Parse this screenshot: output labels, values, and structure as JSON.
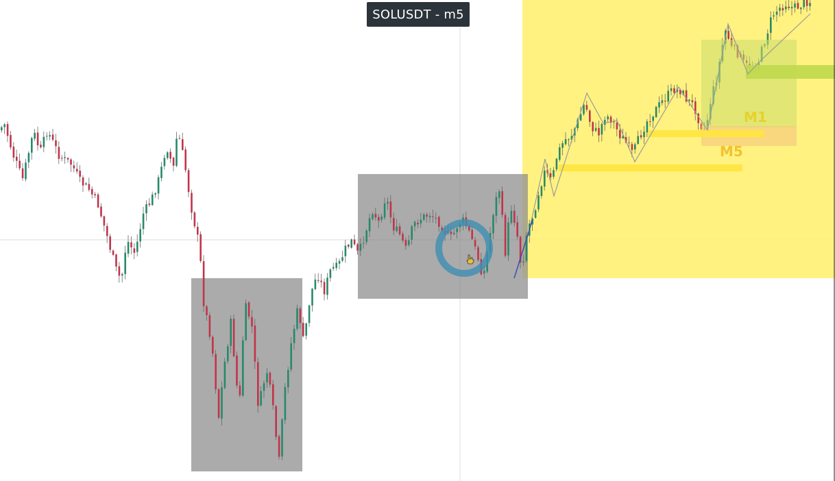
{
  "header": {
    "symbol_title": "SOLUSDT - m5"
  },
  "colors": {
    "bull": "#26896b",
    "bear": "#c2334b",
    "wick": "#666666",
    "consolidation_box": "#8f8f8f",
    "trend_zone": "#fff06a",
    "m1_zone": "#c9dc6c",
    "m5_zone": "#f5c87e",
    "m1_level": "#bfd94d",
    "m5_level": "#ffe540",
    "zigzag": "#9a9a9a",
    "highlight_ring": "#3f8fb2",
    "trendline": "#3a4fb0",
    "crosshair": "#d8d8d8",
    "label_m1": "#e6d22b",
    "label_m5": "#f2c230"
  },
  "annotations": {
    "label_m1": "M1",
    "label_m5": "M5",
    "cursor_icon": "hand-pointer-icon"
  },
  "chart_data": {
    "type": "candlestick",
    "title": "SOLUSDT - m5",
    "timeframe": "m5",
    "xlabel": "",
    "ylabel": "",
    "grid": false,
    "path_points": [
      [
        0,
        190
      ],
      [
        10,
        182
      ],
      [
        22,
        225
      ],
      [
        36,
        262
      ],
      [
        52,
        192
      ],
      [
        62,
        222
      ],
      [
        72,
        190
      ],
      [
        90,
        228
      ],
      [
        108,
        240
      ],
      [
        120,
        265
      ],
      [
        132,
        275
      ],
      [
        146,
        298
      ],
      [
        158,
        340
      ],
      [
        172,
        392
      ],
      [
        180,
        410
      ],
      [
        188,
        350
      ],
      [
        200,
        370
      ],
      [
        212,
        312
      ],
      [
        224,
        292
      ],
      [
        236,
        258
      ],
      [
        246,
        212
      ],
      [
        256,
        246
      ],
      [
        262,
        190
      ],
      [
        272,
        236
      ],
      [
        282,
        302
      ],
      [
        294,
        360
      ],
      [
        300,
        440
      ],
      [
        312,
        500
      ],
      [
        322,
        610
      ],
      [
        330,
        535
      ],
      [
        340,
        470
      ],
      [
        352,
        600
      ],
      [
        360,
        445
      ],
      [
        370,
        470
      ],
      [
        380,
        595
      ],
      [
        392,
        540
      ],
      [
        400,
        585
      ],
      [
        410,
        675
      ],
      [
        418,
        575
      ],
      [
        428,
        500
      ],
      [
        438,
        448
      ],
      [
        446,
        500
      ],
      [
        456,
        430
      ],
      [
        466,
        400
      ],
      [
        476,
        425
      ],
      [
        486,
        392
      ],
      [
        496,
        390
      ],
      [
        506,
        365
      ],
      [
        516,
        352
      ],
      [
        526,
        372
      ],
      [
        536,
        340
      ],
      [
        546,
        305
      ],
      [
        556,
        325
      ],
      [
        566,
        285
      ],
      [
        576,
        330
      ],
      [
        586,
        342
      ],
      [
        596,
        366
      ],
      [
        606,
        328
      ],
      [
        618,
        318
      ],
      [
        630,
        312
      ],
      [
        642,
        322
      ],
      [
        654,
        340
      ],
      [
        662,
        348
      ],
      [
        672,
        325
      ],
      [
        680,
        322
      ],
      [
        690,
        345
      ],
      [
        700,
        375
      ],
      [
        708,
        405
      ],
      [
        716,
        355
      ],
      [
        724,
        300
      ],
      [
        732,
        275
      ],
      [
        740,
        370
      ],
      [
        748,
        300
      ],
      [
        756,
        330
      ],
      [
        764,
        395
      ],
      [
        772,
        335
      ],
      [
        782,
        310
      ],
      [
        790,
        275
      ],
      [
        798,
        250
      ],
      [
        808,
        265
      ],
      [
        816,
        225
      ],
      [
        826,
        205
      ],
      [
        836,
        198
      ],
      [
        846,
        178
      ],
      [
        856,
        150
      ],
      [
        866,
        185
      ],
      [
        876,
        196
      ],
      [
        886,
        168
      ],
      [
        896,
        175
      ],
      [
        906,
        195
      ],
      [
        916,
        208
      ],
      [
        926,
        225
      ],
      [
        936,
        200
      ],
      [
        946,
        178
      ],
      [
        956,
        165
      ],
      [
        966,
        152
      ],
      [
        976,
        140
      ],
      [
        986,
        130
      ],
      [
        996,
        132
      ],
      [
        1006,
        146
      ],
      [
        1016,
        155
      ],
      [
        1024,
        180
      ],
      [
        1032,
        190
      ],
      [
        1040,
        145
      ],
      [
        1050,
        108
      ],
      [
        1056,
        70
      ],
      [
        1062,
        42
      ],
      [
        1070,
        70
      ],
      [
        1080,
        78
      ],
      [
        1090,
        95
      ],
      [
        1100,
        100
      ],
      [
        1110,
        88
      ],
      [
        1120,
        55
      ],
      [
        1130,
        22
      ],
      [
        1140,
        12
      ],
      [
        1150,
        5
      ],
      [
        1160,
        12
      ],
      [
        1170,
        8
      ],
      [
        1180,
        2
      ]
    ]
  }
}
